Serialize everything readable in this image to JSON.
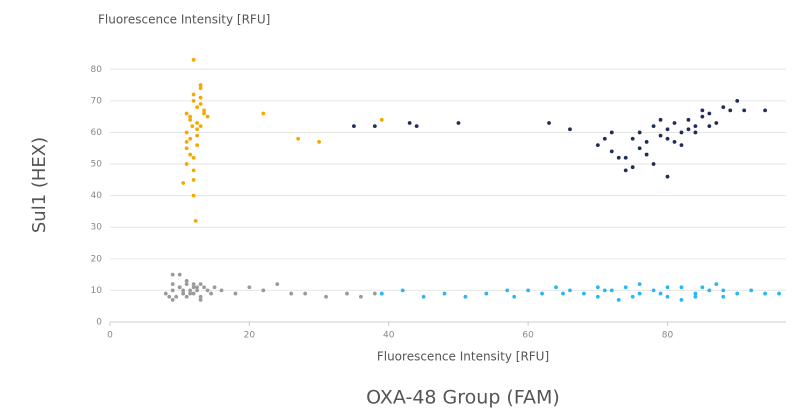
{
  "chart_data": {
    "type": "scatter",
    "y_axis_unit_label": "Fluorescence Intensity [RFU]",
    "y_axis_label": "Sul1 (HEX)",
    "x_axis_unit_label": "Fluorescence Intensity [RFU]",
    "x_axis_label": "OXA-48 Group (FAM)",
    "xlim": [
      0,
      97
    ],
    "ylim": [
      0,
      88
    ],
    "xticks": [
      0,
      20,
      40,
      60,
      80
    ],
    "yticks": [
      0,
      10,
      20,
      30,
      40,
      50,
      60,
      70,
      80
    ],
    "grid": true,
    "series": [
      {
        "color": "#9a9a9a",
        "x": [
          8,
          9,
          9.5,
          10,
          10.5,
          11,
          11,
          11.5,
          12,
          12,
          12.5,
          13,
          13,
          13.5,
          14,
          14.5,
          15,
          9,
          10,
          11,
          12,
          13,
          10.5,
          11.5,
          12.5,
          8.5,
          9,
          16,
          18,
          20,
          22,
          24,
          26,
          28,
          31,
          34,
          36,
          38,
          9,
          10
        ],
        "values": [
          9,
          10,
          8,
          11,
          9,
          12,
          8,
          10,
          11,
          9,
          10,
          12,
          8,
          11,
          10,
          9,
          11,
          15,
          15,
          13,
          12,
          7,
          10,
          9,
          11,
          8,
          7,
          10,
          9,
          11,
          10,
          12,
          9,
          9,
          8,
          9,
          8,
          9,
          12,
          11
        ]
      },
      {
        "color": "#f5a800",
        "x": [
          11,
          11.5,
          12,
          12.5,
          13,
          13.5,
          11,
          12,
          13,
          11.5,
          12.5,
          13.5,
          11,
          12,
          13,
          12,
          11.5,
          12.5,
          10.5,
          11,
          12,
          13,
          14,
          11.5,
          12.5,
          13,
          12,
          12,
          11,
          12.5,
          22,
          27,
          30,
          39,
          12.3,
          11.8
        ],
        "values": [
          60,
          65,
          70,
          68,
          62,
          66,
          55,
          72,
          74,
          58,
          63,
          67,
          50,
          48,
          69,
          45,
          64,
          61,
          44,
          57,
          52,
          71,
          65,
          53,
          59,
          75,
          83,
          40,
          66,
          56,
          66,
          58,
          57,
          64,
          32,
          62
        ]
      },
      {
        "color": "#1f2d5a",
        "x": [
          70,
          72,
          74,
          75,
          76,
          77,
          78,
          79,
          80,
          81,
          82,
          83,
          84,
          85,
          86,
          87,
          88,
          89,
          90,
          72,
          74,
          76,
          78,
          80,
          82,
          84,
          86,
          73,
          75,
          79,
          81,
          83,
          85,
          71,
          77,
          35,
          38,
          43,
          44,
          50,
          63,
          66,
          91,
          94,
          80
        ],
        "values": [
          56,
          54,
          52,
          58,
          60,
          57,
          62,
          59,
          61,
          63,
          60,
          64,
          62,
          65,
          66,
          63,
          68,
          67,
          70,
          60,
          48,
          55,
          50,
          58,
          56,
          60,
          62,
          52,
          49,
          64,
          57,
          61,
          67,
          58,
          53,
          62,
          62,
          63,
          62,
          63,
          63,
          61,
          67,
          67,
          46
        ]
      },
      {
        "color": "#29b6f6",
        "x": [
          39,
          42,
          45,
          48,
          51,
          54,
          57,
          60,
          62,
          64,
          66,
          68,
          70,
          72,
          74,
          76,
          78,
          80,
          82,
          84,
          86,
          88,
          90,
          92,
          94,
          96,
          70,
          73,
          76,
          79,
          82,
          85,
          88,
          71,
          75,
          80,
          84,
          87,
          65,
          58
        ],
        "values": [
          9,
          10,
          8,
          9,
          8,
          9,
          10,
          10,
          9,
          11,
          10,
          9,
          8,
          10,
          11,
          9,
          10,
          8,
          11,
          9,
          10,
          8,
          9,
          10,
          9,
          9,
          11,
          7,
          12,
          9,
          7,
          11,
          10,
          10,
          8,
          11,
          8,
          12,
          9,
          8
        ]
      }
    ]
  }
}
